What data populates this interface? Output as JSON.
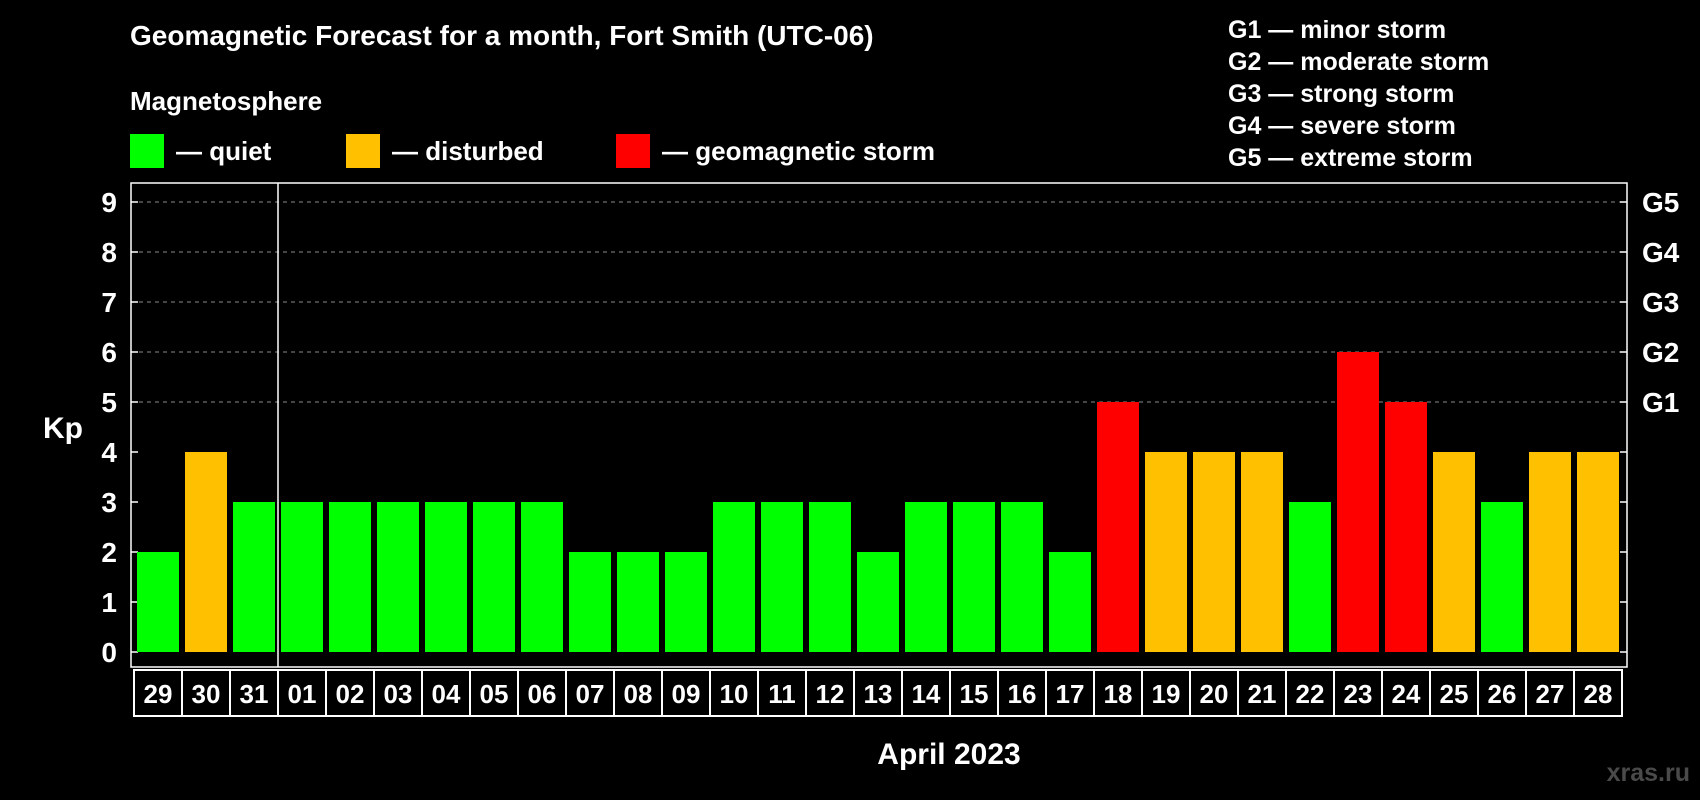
{
  "legend": {
    "magnetosphere_label": "Magnetosphere",
    "items": [
      {
        "label": "— quiet",
        "color": "#00ff00"
      },
      {
        "label": "— disturbed",
        "color": "#ffc000"
      },
      {
        "label": "— geomagnetic storm",
        "color": "#ff0000"
      }
    ],
    "g_scale": [
      "G1 — minor storm",
      "G2 — moderate storm",
      "G3 — strong storm",
      "G4 — severe storm",
      "G5 — extreme storm"
    ]
  },
  "watermark": "xras.ru",
  "chart_data": {
    "type": "bar",
    "title": "Geomagnetic Forecast for a month, Fort Smith (UTC-06)",
    "xlabel": "April 2023",
    "ylabel": "Kp",
    "ylim": [
      0,
      9
    ],
    "yticks": [
      "0",
      "1",
      "2",
      "3",
      "4",
      "5",
      "6",
      "7",
      "8",
      "9"
    ],
    "right_axis_labels": [
      {
        "value": 5,
        "label": "G1"
      },
      {
        "value": 6,
        "label": "G2"
      },
      {
        "value": 7,
        "label": "G3"
      },
      {
        "value": 8,
        "label": "G4"
      },
      {
        "value": 9,
        "label": "G5"
      }
    ],
    "grid": "horizontal dashed at 5-9",
    "month_divider_after": "31",
    "categories": [
      "29",
      "30",
      "31",
      "01",
      "02",
      "03",
      "04",
      "05",
      "06",
      "07",
      "08",
      "09",
      "10",
      "11",
      "12",
      "13",
      "14",
      "15",
      "16",
      "17",
      "18",
      "19",
      "20",
      "21",
      "22",
      "23",
      "24",
      "25",
      "26",
      "27",
      "28"
    ],
    "values": [
      2,
      4,
      3,
      3,
      3,
      3,
      3,
      3,
      3,
      2,
      2,
      2,
      3,
      3,
      3,
      2,
      3,
      3,
      3,
      2,
      5,
      4,
      4,
      4,
      3,
      6,
      5,
      4,
      3,
      4,
      4
    ],
    "levels": [
      "quiet",
      "disturbed",
      "quiet",
      "quiet",
      "quiet",
      "quiet",
      "quiet",
      "quiet",
      "quiet",
      "quiet",
      "quiet",
      "quiet",
      "quiet",
      "quiet",
      "quiet",
      "quiet",
      "quiet",
      "quiet",
      "quiet",
      "quiet",
      "storm",
      "disturbed",
      "disturbed",
      "disturbed",
      "quiet",
      "storm",
      "storm",
      "disturbed",
      "quiet",
      "disturbed",
      "disturbed"
    ],
    "level_colors": {
      "quiet": "#00ff00",
      "disturbed": "#ffc000",
      "storm": "#ff0000"
    }
  }
}
